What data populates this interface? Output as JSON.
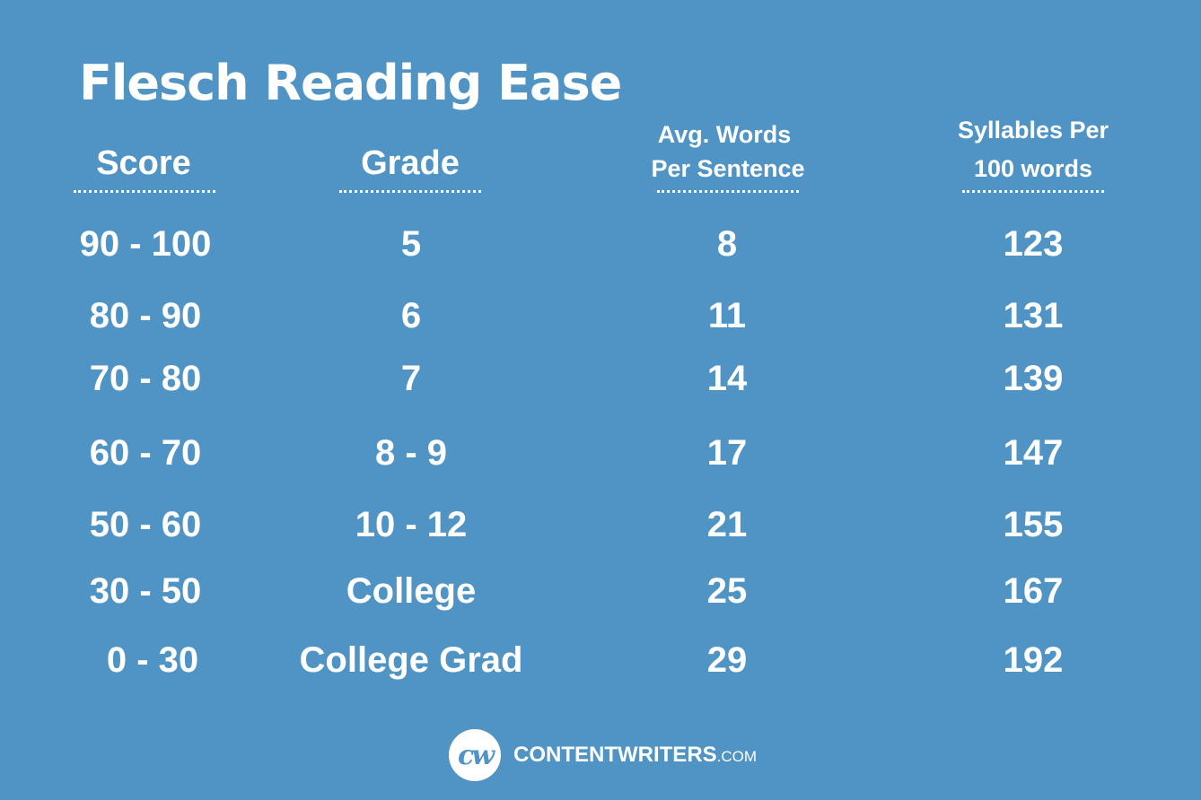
{
  "title": "Flesch Reading Ease",
  "headers": {
    "score": "Score",
    "grade": "Grade",
    "words_line1": "Avg. Words",
    "words_line2": "Per Sentence",
    "syll_line1": "Syllables Per",
    "syll_line2": "100 words"
  },
  "rows": [
    {
      "score": "90 - 100",
      "grade": "5",
      "words": "8",
      "syllables": "123"
    },
    {
      "score": "80 - 90",
      "grade": "6",
      "words": "11",
      "syllables": "131"
    },
    {
      "score": "70 - 80",
      "grade": "7",
      "words": "14",
      "syllables": "139"
    },
    {
      "score": "60 - 70",
      "grade": "8 - 9",
      "words": "17",
      "syllables": "147"
    },
    {
      "score": "50 - 60",
      "grade": "10 - 12",
      "words": "21",
      "syllables": "155"
    },
    {
      "score": "30 - 50",
      "grade": "College",
      "words": "25",
      "syllables": "167"
    },
    {
      "score": "0 - 30",
      "grade": "College Grad",
      "words": "29",
      "syllables": "192"
    }
  ],
  "footer": {
    "logo_text": "cw",
    "brand": "CONTENTWRITERS",
    "brand_suffix": ".COM"
  },
  "colors": {
    "background": "#4f94c4",
    "text": "#ffffff"
  }
}
